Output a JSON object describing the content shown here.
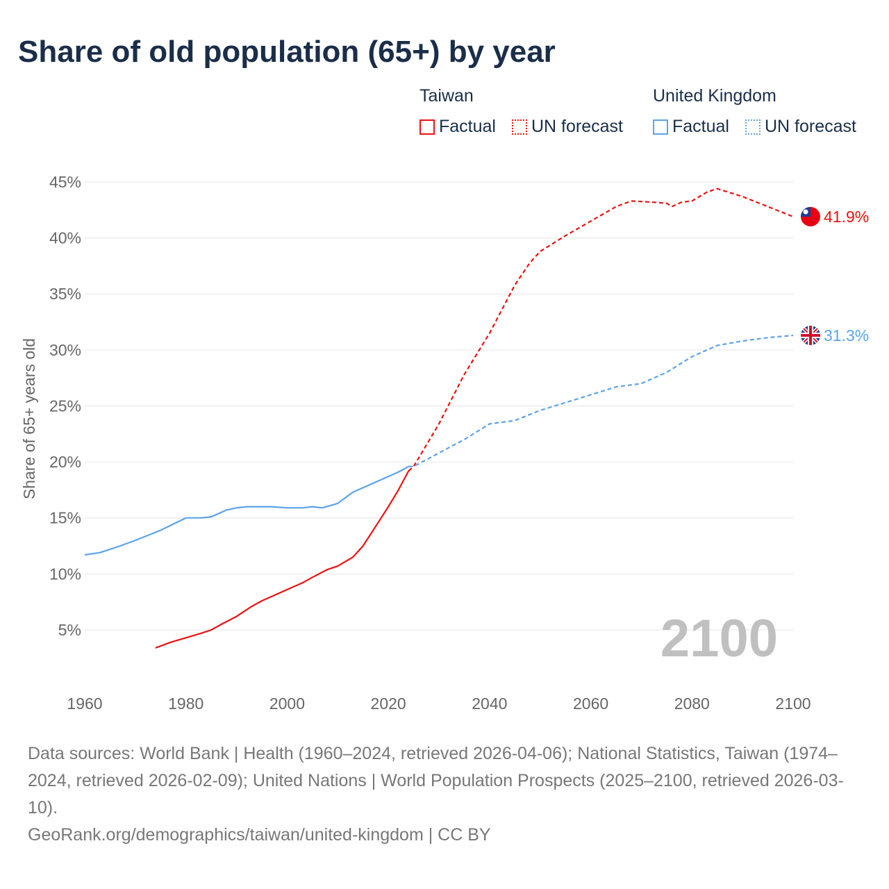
{
  "title": "Share of old population (65+) by year",
  "legend": {
    "groups": [
      {
        "name": "Taiwan",
        "color": "#ee1111",
        "factual": "Factual",
        "forecast": "UN forecast"
      },
      {
        "name": "United Kingdom",
        "color": "#5ba3ea",
        "factual": "Factual",
        "forecast": "UN forecast"
      }
    ]
  },
  "chart_data": {
    "type": "line",
    "title": "Share of old population (65+) by year",
    "xlabel": "",
    "ylabel": "Share of 65+ years old",
    "xlim": [
      1960,
      2100
    ],
    "ylim": [
      0,
      45
    ],
    "x_ticks": [
      "1960",
      "1980",
      "2000",
      "2020",
      "2040",
      "2060",
      "2080",
      "2100"
    ],
    "y_ticks": [
      "5%",
      "10%",
      "15%",
      "20%",
      "25%",
      "30%",
      "35%",
      "40%",
      "45%"
    ],
    "grid": true,
    "legend_position": "top-right",
    "year_watermark": "2100",
    "series": [
      {
        "name": "Taiwan Factual",
        "color": "#ee1111",
        "style": "solid",
        "x": [
          1974,
          1977,
          1980,
          1983,
          1985,
          1987,
          1990,
          1993,
          1995,
          1998,
          2000,
          2003,
          2005,
          2008,
          2010,
          2013,
          2015,
          2018,
          2020,
          2022,
          2024
        ],
        "y": [
          3.4,
          3.9,
          4.3,
          4.7,
          5.0,
          5.5,
          6.2,
          7.1,
          7.6,
          8.2,
          8.6,
          9.2,
          9.7,
          10.4,
          10.7,
          11.5,
          12.5,
          14.6,
          16.0,
          17.5,
          19.2
        ]
      },
      {
        "name": "Taiwan UN forecast",
        "color": "#ee1111",
        "style": "dashed",
        "x": [
          2024,
          2025,
          2030,
          2035,
          2040,
          2045,
          2048,
          2050,
          2055,
          2060,
          2065,
          2068,
          2072,
          2075,
          2076,
          2078,
          2080,
          2083,
          2085,
          2090,
          2095,
          2100
        ],
        "y": [
          19.2,
          19.6,
          23.4,
          27.8,
          31.5,
          35.8,
          37.8,
          38.8,
          40.2,
          41.5,
          42.8,
          43.3,
          43.2,
          43.1,
          42.8,
          43.2,
          43.3,
          44.1,
          44.4,
          43.7,
          42.8,
          41.9
        ]
      },
      {
        "name": "United Kingdom Factual",
        "color": "#5ba3ea",
        "style": "solid",
        "x": [
          1960,
          1963,
          1965,
          1967,
          1970,
          1975,
          1980,
          1983,
          1985,
          1988,
          1990,
          1992,
          1995,
          1997,
          2000,
          2003,
          2005,
          2007,
          2010,
          2013,
          2015,
          2018,
          2020,
          2022,
          2024
        ],
        "y": [
          11.7,
          11.9,
          12.2,
          12.5,
          13.0,
          13.9,
          15.0,
          15.0,
          15.1,
          15.7,
          15.9,
          16.0,
          16.0,
          16.0,
          15.9,
          15.9,
          16.0,
          15.9,
          16.3,
          17.3,
          17.7,
          18.3,
          18.7,
          19.1,
          19.6
        ]
      },
      {
        "name": "United Kingdom UN forecast",
        "color": "#5ba3ea",
        "style": "dashed",
        "x": [
          2024,
          2025,
          2030,
          2035,
          2040,
          2045,
          2050,
          2055,
          2060,
          2065,
          2070,
          2075,
          2080,
          2085,
          2090,
          2095,
          2100
        ],
        "y": [
          19.6,
          19.6,
          20.8,
          22.0,
          23.4,
          23.7,
          24.6,
          25.3,
          26.0,
          26.7,
          27.0,
          28.0,
          29.4,
          30.4,
          30.8,
          31.1,
          31.3
        ]
      }
    ],
    "end_labels": [
      {
        "country": "Taiwan",
        "label": "41.9%",
        "value": 41.9,
        "color": "#ee1111"
      },
      {
        "country": "United Kingdom",
        "label": "31.3%",
        "value": 31.3,
        "color": "#5ba3ea"
      }
    ]
  },
  "footer": {
    "sources": "Data sources: World Bank | Health (1960–2024, retrieved 2026-04-06); National Statistics, Taiwan (1974–2024, retrieved 2026-02-09); United Nations | World Population Prospects (2025–2100, retrieved 2026-03-10).",
    "link": "GeoRank.org/demographics/taiwan/united-kingdom | CC BY"
  }
}
